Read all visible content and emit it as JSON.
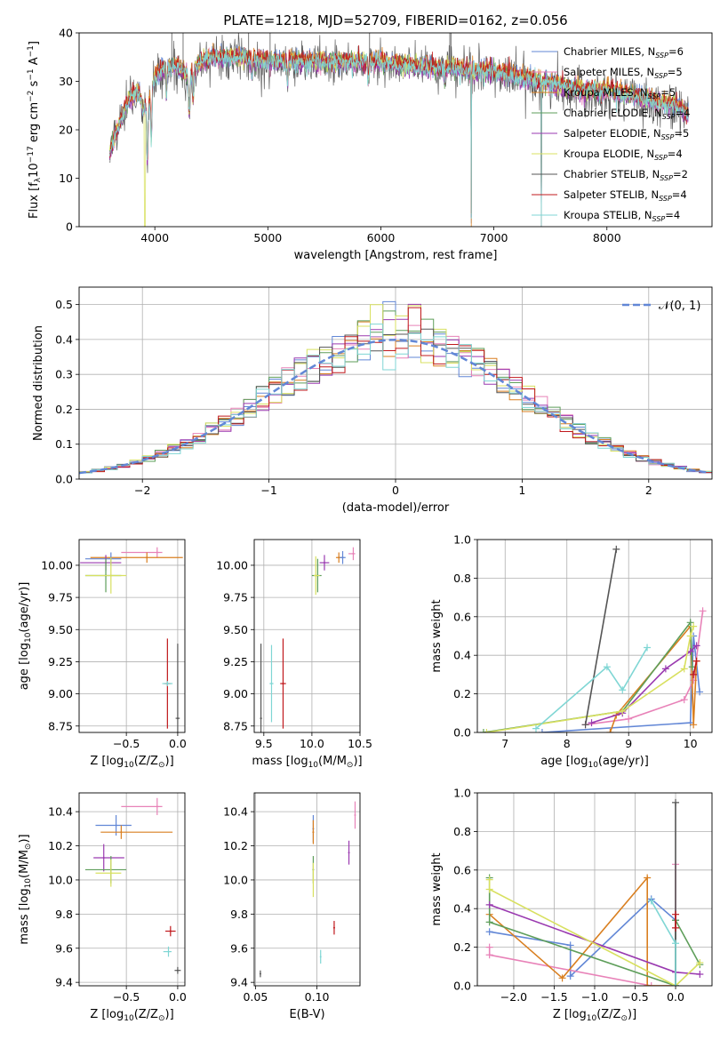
{
  "title": "PLATE=1218, MJD=52709, FIBERID=0162, z=0.056",
  "chart_data": [
    {
      "id": "spectrum",
      "type": "line",
      "xlabel": "wavelength [Angstrom, rest frame]",
      "ylabel": "Flux [f$_\\lambda$10$^{-17}$ erg cm$^{-2}$ s$^{-1}$ A$^{-1}$]",
      "ylabel_parts": [
        "Flux [f",
        "λ",
        "10",
        "−17",
        " erg cm",
        "−2",
        " s",
        "−1",
        " A",
        "−1",
        "]"
      ],
      "xlim": [
        3330,
        8930
      ],
      "ylim": [
        0,
        40
      ],
      "xticks": [
        4000,
        5000,
        6000,
        7000,
        8000
      ],
      "yticks": [
        0,
        10,
        20,
        30,
        40
      ],
      "grid": false,
      "legend_position": "top-right",
      "legend": [
        {
          "name": "Chabrier MILES, N",
          "sub": "SSP",
          "suffix": "=6",
          "color": "#6287d6"
        },
        {
          "name": "Salpeter MILES, N",
          "sub": "SSP",
          "suffix": "=5",
          "color": "#e882b8"
        },
        {
          "name": "Kroupa MILES, N",
          "sub": "SSP",
          "suffix": "=5",
          "color": "#d97f20"
        },
        {
          "name": "Chabrier ELODIE, N",
          "sub": "SSP",
          "suffix": "=4",
          "color": "#5e9e5a"
        },
        {
          "name": "Salpeter ELODIE, N",
          "sub": "SSP",
          "suffix": "=5",
          "color": "#9a3ab0"
        },
        {
          "name": "Kroupa ELODIE, N",
          "sub": "SSP",
          "suffix": "=4",
          "color": "#d8e060"
        },
        {
          "name": "Chabrier STELIB, N",
          "sub": "SSP",
          "suffix": "=2",
          "color": "#555555"
        },
        {
          "name": "Salpeter STELIB, N",
          "sub": "SSP",
          "suffix": "=4",
          "color": "#c0181c"
        },
        {
          "name": "Kroupa STELIB, N",
          "sub": "SSP",
          "suffix": "=4",
          "color": "#7fd6d4"
        }
      ],
      "continuum": [
        [
          3600,
          15
        ],
        [
          3650,
          19
        ],
        [
          3700,
          22
        ],
        [
          3750,
          25
        ],
        [
          3800,
          27
        ],
        [
          3850,
          28
        ],
        [
          3900,
          24
        ],
        [
          3950,
          26
        ],
        [
          4000,
          31
        ],
        [
          4100,
          33
        ],
        [
          4200,
          33
        ],
        [
          4300,
          31
        ],
        [
          4400,
          34
        ],
        [
          4500,
          35
        ],
        [
          4600,
          35
        ],
        [
          4800,
          35
        ],
        [
          5000,
          34
        ],
        [
          5200,
          34
        ],
        [
          5500,
          34
        ],
        [
          5800,
          34
        ],
        [
          6000,
          34
        ],
        [
          6300,
          33
        ],
        [
          6560,
          33
        ],
        [
          6800,
          32
        ],
        [
          7000,
          32
        ],
        [
          7200,
          31
        ],
        [
          7400,
          30
        ],
        [
          7600,
          29
        ],
        [
          7800,
          28
        ],
        [
          8000,
          28
        ],
        [
          8200,
          27
        ],
        [
          8400,
          26
        ],
        [
          8600,
          25
        ],
        [
          8720,
          23
        ]
      ],
      "absorption_lines": [
        [
          3934,
          12
        ],
        [
          3969,
          10
        ],
        [
          4102,
          6
        ],
        [
          4304,
          8
        ],
        [
          4340,
          6
        ],
        [
          4861,
          4
        ],
        [
          5175,
          4
        ],
        [
          5890,
          4
        ],
        [
          6563,
          3
        ],
        [
          6800,
          30
        ],
        [
          7420,
          30
        ]
      ]
    },
    {
      "id": "residuals",
      "type": "histogram",
      "xlabel": "(data-model)/error",
      "ylabel": "Normed distribution",
      "xlim": [
        -2.5,
        2.5
      ],
      "ylim": [
        0,
        0.55
      ],
      "xticks": [
        -2,
        -1,
        0,
        1,
        2
      ],
      "yticks": [
        0.0,
        0.1,
        0.2,
        0.3,
        0.4,
        0.5
      ],
      "grid": true,
      "legend_position": "top-right",
      "legend": [
        {
          "name": "𝒩(0, 1)",
          "color": "#6287d6",
          "style": "dashed"
        }
      ],
      "bin_width": 0.1
    },
    {
      "id": "age-vs-Z",
      "type": "errorbar",
      "xlabel": "Z [log$_{10}$(Z/Z$_\\odot$)]",
      "ylabel": "age  [log$_{10}$(age/yr)]",
      "xlim": [
        -0.96,
        0.07
      ],
      "ylim": [
        8.7,
        10.2
      ],
      "xticks": [
        -0.5,
        0.0
      ],
      "yticks": [
        8.75,
        9.0,
        9.25,
        9.5,
        9.75,
        10.0
      ],
      "grid": true,
      "points": [
        {
          "color": "#e882b8",
          "x": -0.2,
          "xerr": [
            0.35,
            0.05
          ],
          "y": 10.1,
          "yerr": 0.04
        },
        {
          "color": "#d97f20",
          "x": -0.3,
          "xerr": [
            0.55,
            0.35
          ],
          "y": 10.06,
          "yerr": 0.04
        },
        {
          "color": "#6287d6",
          "x": -0.65,
          "xerr": [
            0.25,
            0.1
          ],
          "y": 10.05,
          "yerr": 0.05
        },
        {
          "color": "#9a3ab0",
          "x": -0.7,
          "xerr": [
            0.25,
            0.15
          ],
          "y": 10.02,
          "yerr": 0.06
        },
        {
          "color": "#5e9e5a",
          "x": -0.7,
          "xerr": [
            0.2,
            0.15
          ],
          "y": 9.92,
          "yerr": 0.13
        },
        {
          "color": "#d8e060",
          "x": -0.65,
          "xerr": [
            0.25,
            0.15
          ],
          "y": 9.92,
          "yerr": 0.14
        },
        {
          "color": "#c0181c",
          "x": -0.1,
          "xerr": [
            0.03,
            0.03
          ],
          "y": 9.08,
          "yerr": 0.35
        },
        {
          "color": "#7fd6d4",
          "x": -0.1,
          "xerr": [
            0.05,
            0.05
          ],
          "y": 9.08,
          "yerr": 0.02
        },
        {
          "color": "#555555",
          "x": 0.0,
          "xerr": [
            0.02,
            0.02
          ],
          "y": 8.81,
          "yerr": 0.58
        }
      ]
    },
    {
      "id": "age-vs-mass",
      "type": "errorbar",
      "xlabel": "mass [log$_{10}$(M/M$_\\odot$)]",
      "ylabel": "",
      "xlim": [
        9.4,
        10.5
      ],
      "ylim": [
        8.7,
        10.2
      ],
      "xticks": [
        9.5,
        10.0,
        10.5
      ],
      "yticks": [
        8.75,
        9.0,
        9.25,
        9.5,
        9.75,
        10.0
      ],
      "grid": true,
      "points": [
        {
          "color": "#e882b8",
          "x": 10.43,
          "xerr": [
            0.05,
            0.02
          ],
          "y": 10.09,
          "yerr": 0.05
        },
        {
          "color": "#d97f20",
          "x": 10.28,
          "xerr": [
            0.03,
            0.03
          ],
          "y": 10.06,
          "yerr": 0.04
        },
        {
          "color": "#6287d6",
          "x": 10.32,
          "xerr": [
            0.03,
            0.03
          ],
          "y": 10.06,
          "yerr": 0.05
        },
        {
          "color": "#9a3ab0",
          "x": 10.13,
          "xerr": [
            0.05,
            0.05
          ],
          "y": 10.02,
          "yerr": 0.06
        },
        {
          "color": "#5e9e5a",
          "x": 10.06,
          "xerr": [
            0.06,
            0.04
          ],
          "y": 9.92,
          "yerr": 0.13
        },
        {
          "color": "#d8e060",
          "x": 10.04,
          "xerr": [
            0.02,
            0.04
          ],
          "y": 9.92,
          "yerr": 0.15
        },
        {
          "color": "#c0181c",
          "x": 9.7,
          "xerr": [
            0.03,
            0.03
          ],
          "y": 9.08,
          "yerr": 0.35
        },
        {
          "color": "#7fd6d4",
          "x": 9.58,
          "xerr": [
            0.02,
            0.02
          ],
          "y": 9.08,
          "yerr": 0.3
        },
        {
          "color": "#555555",
          "x": 9.47,
          "xerr": [
            0.01,
            0.01
          ],
          "y": 8.81,
          "yerr": 0.58
        }
      ]
    },
    {
      "id": "massweight-vs-age",
      "type": "line",
      "xlabel": "age  [log$_{10}$(age/yr)]",
      "ylabel": "mass weight",
      "xlim": [
        6.55,
        10.35
      ],
      "ylim": [
        0,
        1
      ],
      "xticks": [
        7,
        8,
        9,
        10
      ],
      "yticks": [
        0.0,
        0.2,
        0.4,
        0.6,
        0.8,
        1.0
      ],
      "grid": true,
      "series": [
        {
          "color": "#6287d6",
          "x": [
            7.6,
            10.0,
            10.05,
            10.15
          ],
          "y": [
            0.0,
            0.05,
            0.5,
            0.21
          ]
        },
        {
          "color": "#e882b8",
          "x": [
            8.3,
            9.0,
            9.9,
            10.05,
            10.2
          ],
          "y": [
            0.04,
            0.07,
            0.17,
            0.27,
            0.63
          ]
        },
        {
          "color": "#d97f20",
          "x": [
            8.7,
            8.8,
            10.0,
            10.05,
            10.1
          ],
          "y": [
            0.0,
            0.09,
            0.55,
            0.04,
            0.37
          ]
        },
        {
          "color": "#5e9e5a",
          "x": [
            6.65,
            8.9,
            10.0,
            10.03
          ],
          "y": [
            0.0,
            0.11,
            0.57,
            0.34
          ]
        },
        {
          "color": "#9a3ab0",
          "x": [
            8.4,
            8.9,
            9.6,
            10.0,
            10.1
          ],
          "y": [
            0.05,
            0.1,
            0.33,
            0.42,
            0.45
          ]
        },
        {
          "color": "#d8e060",
          "x": [
            6.7,
            8.9,
            9.9,
            10.0,
            10.05
          ],
          "y": [
            0.0,
            0.11,
            0.33,
            0.5,
            0.55
          ]
        },
        {
          "color": "#555555",
          "x": [
            8.3,
            8.8
          ],
          "y": [
            0.04,
            0.95
          ]
        },
        {
          "color": "#c0181c",
          "x": [
            10.05,
            10.1
          ],
          "y": [
            0.3,
            0.37
          ]
        },
        {
          "color": "#7fd6d4",
          "x": [
            7.5,
            8.65,
            8.9,
            9.3
          ],
          "y": [
            0.02,
            0.34,
            0.22,
            0.44
          ]
        }
      ]
    },
    {
      "id": "mass-vs-Z",
      "type": "errorbar",
      "xlabel": "Z [log$_{10}$(Z/Z$_\\odot$)]",
      "ylabel": "mass [log$_{10}$(M/M$_\\odot$)]",
      "xlim": [
        -0.96,
        0.07
      ],
      "ylim": [
        9.38,
        10.51
      ],
      "xticks": [
        -0.5,
        0.0
      ],
      "yticks": [
        9.4,
        9.6,
        9.8,
        10.0,
        10.2,
        10.4
      ],
      "grid": true,
      "points": [
        {
          "color": "#e882b8",
          "x": -0.2,
          "xerr": [
            0.35,
            0.05
          ],
          "y": 10.43,
          "yerr": 0.05
        },
        {
          "color": "#6287d6",
          "x": -0.6,
          "xerr": [
            0.2,
            0.15
          ],
          "y": 10.32,
          "yerr": 0.06
        },
        {
          "color": "#d97f20",
          "x": -0.55,
          "xerr": [
            0.2,
            0.5
          ],
          "y": 10.28,
          "yerr": 0.04
        },
        {
          "color": "#9a3ab0",
          "x": -0.72,
          "xerr": [
            0.1,
            0.2
          ],
          "y": 10.13,
          "yerr": 0.08
        },
        {
          "color": "#5e9e5a",
          "x": -0.65,
          "xerr": [
            0.25,
            0.15
          ],
          "y": 10.06,
          "yerr": 0.08
        },
        {
          "color": "#d8e060",
          "x": -0.65,
          "xerr": [
            0.15,
            0.1
          ],
          "y": 10.04,
          "yerr": 0.08
        },
        {
          "color": "#c0181c",
          "x": -0.07,
          "xerr": [
            0.05,
            0.05
          ],
          "y": 9.7,
          "yerr": 0.03
        },
        {
          "color": "#7fd6d4",
          "x": -0.09,
          "xerr": [
            0.05,
            0.03
          ],
          "y": 9.58,
          "yerr": 0.03
        },
        {
          "color": "#555555",
          "x": 0.0,
          "xerr": [
            0.03,
            0.03
          ],
          "y": 9.47,
          "yerr": 0.02
        }
      ]
    },
    {
      "id": "mass-vs-ebv",
      "type": "errorbar",
      "xlabel": "E(B-V)",
      "ylabel": "",
      "xlim": [
        0.049,
        0.135
      ],
      "ylim": [
        9.38,
        10.51
      ],
      "xticks": [
        0.05,
        0.1
      ],
      "yticks": [
        9.4,
        9.6,
        9.8,
        10.0,
        10.2,
        10.4
      ],
      "grid": true,
      "points": [
        {
          "color": "#e882b8",
          "x": 0.131,
          "xerr": [
            0.0,
            0.0
          ],
          "y": 10.38,
          "yerr": 0.08
        },
        {
          "color": "#6287d6",
          "x": 0.097,
          "xerr": [
            0.0,
            0.0
          ],
          "y": 10.3,
          "yerr": 0.08
        },
        {
          "color": "#d97f20",
          "x": 0.097,
          "xerr": [
            0.0,
            0.0
          ],
          "y": 10.28,
          "yerr": 0.07
        },
        {
          "color": "#9a3ab0",
          "x": 0.126,
          "xerr": [
            0.0,
            0.0
          ],
          "y": 10.16,
          "yerr": 0.07
        },
        {
          "color": "#5e9e5a",
          "x": 0.097,
          "xerr": [
            0.0,
            0.0
          ],
          "y": 10.06,
          "yerr": 0.08
        },
        {
          "color": "#d8e060",
          "x": 0.097,
          "xerr": [
            0.0,
            0.0
          ],
          "y": 10.0,
          "yerr": 0.1
        },
        {
          "color": "#c0181c",
          "x": 0.114,
          "xerr": [
            0.0,
            0.0
          ],
          "y": 9.72,
          "yerr": 0.04
        },
        {
          "color": "#7fd6d4",
          "x": 0.103,
          "xerr": [
            0.0,
            0.0
          ],
          "y": 9.55,
          "yerr": 0.04
        },
        {
          "color": "#555555",
          "x": 0.054,
          "xerr": [
            0.0,
            0.0
          ],
          "y": 9.45,
          "yerr": 0.02
        }
      ]
    },
    {
      "id": "massweight-vs-Z",
      "type": "line",
      "xlabel": "Z [log$_{10}$(Z/Z$_\\odot$)]",
      "ylabel": "mass weight",
      "xlim": [
        -2.45,
        0.45
      ],
      "ylim": [
        0,
        1
      ],
      "xticks": [
        -2.0,
        -1.5,
        -1.0,
        -0.5,
        0.0
      ],
      "yticks": [
        0.0,
        0.2,
        0.4,
        0.6,
        0.8,
        1.0
      ],
      "grid": true,
      "series": [
        {
          "color": "#6287d6",
          "x": [
            -2.3,
            -1.3,
            -1.3,
            -0.3,
            0.0,
            0.0
          ],
          "y": [
            0.28,
            0.21,
            0.05,
            0.45,
            0.34,
            0.0
          ]
        },
        {
          "color": "#e882b8",
          "x": [
            -2.3,
            -2.3,
            -0.3,
            0.0,
            0.0
          ],
          "y": [
            0.2,
            0.16,
            0.0,
            0.0,
            0.63
          ]
        },
        {
          "color": "#d97f20",
          "x": [
            -2.3,
            -1.4,
            -0.35,
            -0.35,
            0.0
          ],
          "y": [
            0.37,
            0.04,
            0.56,
            0.0,
            0.0
          ]
        },
        {
          "color": "#5e9e5a",
          "x": [
            -2.3,
            -2.3,
            0.0,
            0.0,
            0.3
          ],
          "y": [
            0.56,
            0.33,
            0.0,
            0.34,
            0.11
          ]
        },
        {
          "color": "#9a3ab0",
          "x": [
            -2.3,
            0.0,
            0.3
          ],
          "y": [
            0.42,
            0.07,
            0.06
          ]
        },
        {
          "color": "#d8e060",
          "x": [
            -2.3,
            -2.3,
            0.0,
            0.3
          ],
          "y": [
            0.55,
            0.5,
            0.0,
            0.12
          ]
        },
        {
          "color": "#555555",
          "x": [
            0.0,
            0.0
          ],
          "y": [
            0.95,
            0.0
          ]
        },
        {
          "color": "#c0181c",
          "x": [
            0.0,
            0.0
          ],
          "y": [
            0.37,
            0.3
          ]
        },
        {
          "color": "#7fd6d4",
          "x": [
            -0.3,
            0.0,
            0.0
          ],
          "y": [
            0.44,
            0.22,
            0.0
          ]
        }
      ]
    }
  ]
}
